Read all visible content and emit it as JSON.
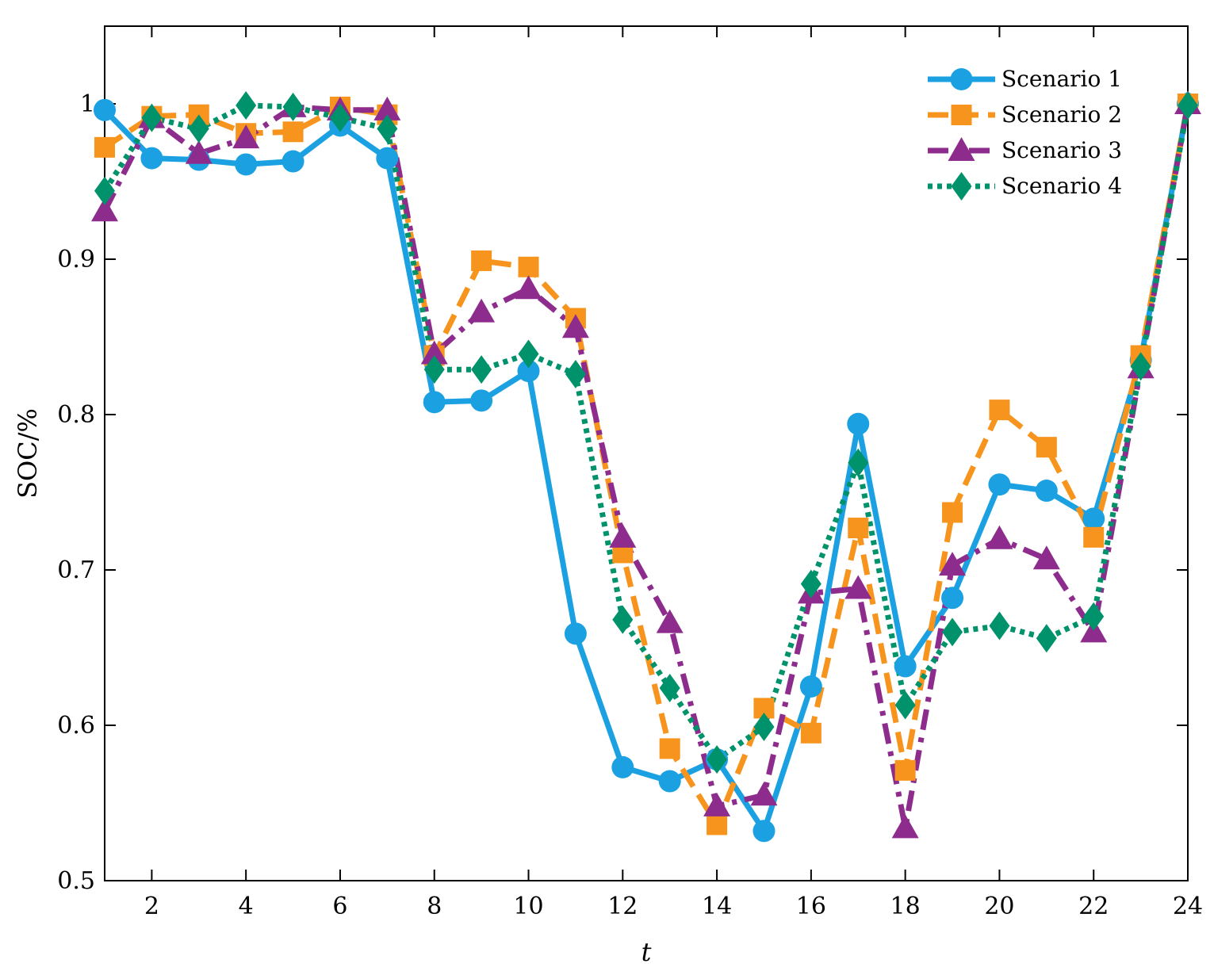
{
  "chart_data": {
    "type": "line",
    "title": "",
    "xlabel": "t",
    "ylabel": "SOC/%",
    "xlim": [
      1,
      24
    ],
    "ylim": [
      0.5,
      1.05
    ],
    "xticks": [
      2,
      4,
      6,
      8,
      10,
      12,
      14,
      16,
      18,
      20,
      22,
      24
    ],
    "yticks": [
      0.5,
      0.6,
      0.7,
      0.8,
      0.9,
      1
    ],
    "ytick_labels": [
      "0.5",
      "0.6",
      "0.7",
      "0.8",
      "0.9",
      "1"
    ],
    "legend_position": "top-right",
    "grid": false,
    "x": [
      1,
      2,
      3,
      4,
      5,
      6,
      7,
      8,
      9,
      10,
      11,
      12,
      13,
      14,
      15,
      16,
      17,
      18,
      19,
      20,
      21,
      22,
      23,
      24
    ],
    "series": [
      {
        "name": "Scenario 1",
        "color": "#1ba1e2",
        "marker": "circle",
        "dash": "solid",
        "values": [
          0.996,
          0.965,
          0.964,
          0.961,
          0.963,
          0.986,
          0.965,
          0.808,
          0.809,
          0.828,
          0.659,
          0.573,
          0.564,
          0.578,
          0.532,
          0.625,
          0.794,
          0.638,
          0.682,
          0.755,
          0.751,
          0.733,
          0.835,
          1.0
        ]
      },
      {
        "name": "Scenario 2",
        "color": "#f7941d",
        "marker": "square",
        "dash": "dashed",
        "values": [
          0.972,
          0.992,
          0.993,
          0.981,
          0.982,
          0.998,
          0.993,
          0.838,
          0.899,
          0.895,
          0.862,
          0.711,
          0.585,
          0.536,
          0.611,
          0.595,
          0.727,
          0.571,
          0.737,
          0.803,
          0.779,
          0.721,
          0.838,
          1.0
        ]
      },
      {
        "name": "Scenario 3",
        "color": "#8e2c8e",
        "marker": "triangle",
        "dash": "dashdot",
        "values": [
          0.931,
          0.991,
          0.968,
          0.978,
          0.998,
          0.996,
          0.996,
          0.839,
          0.866,
          0.881,
          0.856,
          0.721,
          0.666,
          0.548,
          0.555,
          0.685,
          0.688,
          0.534,
          0.703,
          0.72,
          0.707,
          0.66,
          0.83,
          1.0
        ]
      },
      {
        "name": "Scenario 4",
        "color": "#00926b",
        "marker": "diamond",
        "dash": "dotted",
        "values": [
          0.944,
          0.991,
          0.984,
          0.999,
          0.998,
          0.991,
          0.984,
          0.829,
          0.829,
          0.839,
          0.826,
          0.668,
          0.624,
          0.578,
          0.599,
          0.691,
          0.769,
          0.613,
          0.66,
          0.664,
          0.656,
          0.67,
          0.831,
          0.999
        ]
      }
    ]
  }
}
